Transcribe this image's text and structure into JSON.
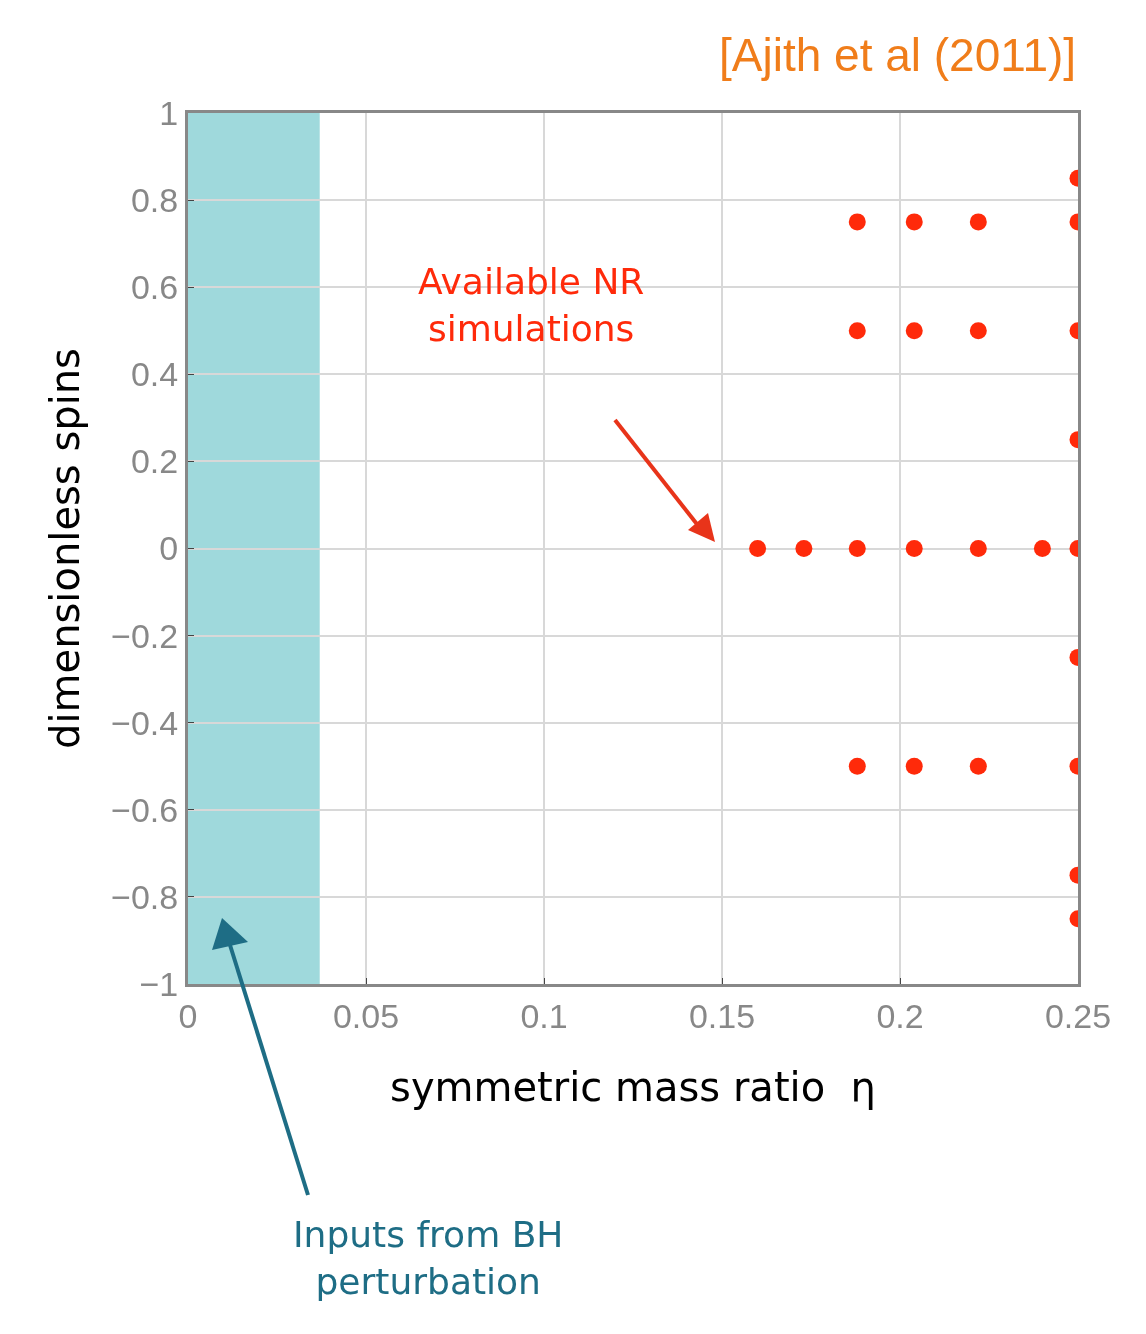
{
  "chart_data": {
    "type": "scatter",
    "xlabel": "symmetric mass ratio  η",
    "ylabel": "dimensionless spins",
    "annotations": [
      "[Ajith et al (2011)]",
      "Available NR\nsimulations"
    ],
    "series": [
      {
        "color": "#ff2a0a",
        "x": [
          0.16,
          0.173,
          0.188,
          0.204,
          0.222,
          0.24,
          0.25,
          0.188,
          0.204,
          0.222,
          0.25,
          0.188,
          0.204,
          0.222,
          0.25,
          0.188,
          0.204,
          0.222,
          0.25,
          0.25,
          0.25,
          0.25,
          0.25,
          0.25
        ],
        "values": [
          0,
          0,
          0,
          0,
          0,
          0,
          0,
          0.75,
          0.75,
          0.75,
          0.75,
          0.5,
          0.5,
          0.5,
          0.5,
          -0.5,
          -0.5,
          -0.5,
          -0.5,
          0.85,
          0.25,
          -0.25,
          -0.75,
          -0.85
        ]
      }
    ],
    "bands": [
      {
        "axis": "x",
        "from": 0,
        "to": 0.037,
        "label": "Inputs from BH\nperturbation",
        "color": "#5fbfc4"
      }
    ],
    "xlim": [
      0,
      0.25
    ],
    "xticks": [
      0,
      0.05,
      0.1,
      0.15,
      0.2,
      0.25
    ],
    "ylim": [
      -1,
      1
    ],
    "yticks": [
      {
        "value": -1,
        "label": "−1"
      },
      {
        "value": -0.8,
        "label": "−0.8"
      },
      {
        "value": -0.6,
        "label": "−0.6"
      },
      {
        "value": -0.4,
        "label": "−0.4"
      },
      {
        "value": -0.2,
        "label": "−0.2"
      },
      0,
      0.2,
      0.4,
      0.6,
      0.8,
      1
    ],
    "grid": true,
    "marker": "circle"
  }
}
